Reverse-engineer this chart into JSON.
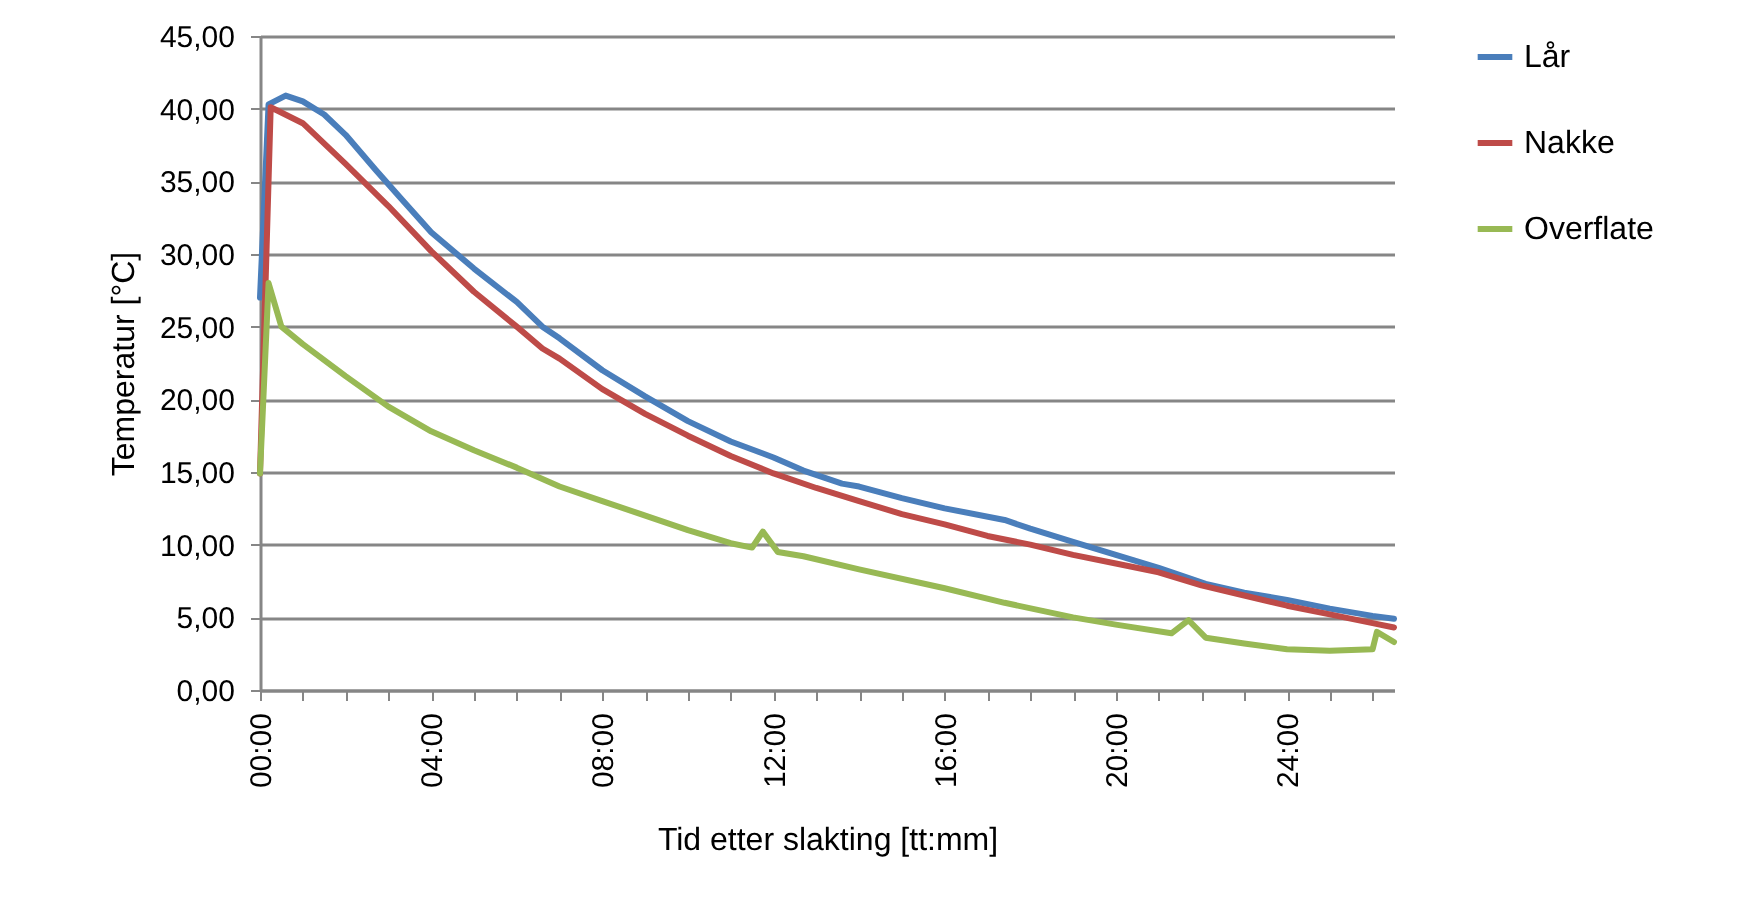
{
  "chart_data": {
    "type": "line",
    "xlabel": "Tid etter slakting [tt:mm]",
    "ylabel": "Temperatur [°C]",
    "xlim": [
      0,
      26.5
    ],
    "ylim": [
      0,
      45
    ],
    "xticks": [
      {
        "value": 0,
        "label": "00:00"
      },
      {
        "value": 1,
        "label": null
      },
      {
        "value": 2,
        "label": null
      },
      {
        "value": 3,
        "label": null
      },
      {
        "value": 4,
        "label": "04:00"
      },
      {
        "value": 5,
        "label": null
      },
      {
        "value": 6,
        "label": null
      },
      {
        "value": 7,
        "label": null
      },
      {
        "value": 8,
        "label": "08:00"
      },
      {
        "value": 9,
        "label": null
      },
      {
        "value": 10,
        "label": null
      },
      {
        "value": 11,
        "label": null
      },
      {
        "value": 12,
        "label": "12:00"
      },
      {
        "value": 13,
        "label": null
      },
      {
        "value": 14,
        "label": null
      },
      {
        "value": 15,
        "label": null
      },
      {
        "value": 16,
        "label": "16:00"
      },
      {
        "value": 17,
        "label": null
      },
      {
        "value": 18,
        "label": null
      },
      {
        "value": 19,
        "label": null
      },
      {
        "value": 20,
        "label": "20:00"
      },
      {
        "value": 21,
        "label": null
      },
      {
        "value": 22,
        "label": null
      },
      {
        "value": 23,
        "label": null
      },
      {
        "value": 24,
        "label": "24:00"
      },
      {
        "value": 25,
        "label": null
      },
      {
        "value": 26,
        "label": null
      }
    ],
    "yticks": [
      {
        "value": 0,
        "label": "0,00"
      },
      {
        "value": 5,
        "label": "5,00"
      },
      {
        "value": 10,
        "label": "10,00"
      },
      {
        "value": 15,
        "label": "15,00"
      },
      {
        "value": 20,
        "label": "20,00"
      },
      {
        "value": 25,
        "label": "25,00"
      },
      {
        "value": 30,
        "label": "30,00"
      },
      {
        "value": 35,
        "label": "35,00"
      },
      {
        "value": 40,
        "label": "40,00"
      },
      {
        "value": 45,
        "label": "45,00"
      }
    ],
    "grid": "y",
    "legend": "right",
    "marker": "none",
    "line_style": "solid",
    "series": [
      {
        "name": "Lår",
        "color": "#4a7ebb",
        "x": [
          0,
          0.2,
          0.6,
          1,
          1.5,
          2,
          2.7,
          3.3,
          4,
          5,
          6,
          6.6,
          7,
          8,
          9,
          10,
          11,
          12,
          12.7,
          13.6,
          14,
          15,
          16,
          17.4,
          18,
          19,
          20,
          21,
          22.1,
          23,
          24,
          25,
          26,
          26.5
        ],
        "values": [
          27,
          40.3,
          40.9,
          40.5,
          39.6,
          38.2,
          35.8,
          33.8,
          31.5,
          29,
          26.7,
          25,
          24.2,
          22,
          20.2,
          18.5,
          17.1,
          16,
          15.1,
          14.2,
          14,
          13.2,
          12.5,
          11.7,
          11.1,
          10.2,
          9.3,
          8.4,
          7.3,
          6.7,
          6.2,
          5.6,
          5.1,
          4.9
        ]
      },
      {
        "name": "Nakke",
        "color": "#be4b48",
        "x": [
          0,
          0.15,
          0.25,
          1,
          2,
          3,
          4,
          5,
          6,
          6.6,
          7,
          8,
          9,
          10,
          11,
          12,
          13,
          14,
          15,
          16,
          17,
          18,
          19,
          20,
          21,
          22,
          23,
          24,
          25,
          26,
          26.5
        ],
        "values": [
          14.9,
          30,
          40.1,
          39,
          36.2,
          33.3,
          30.2,
          27.4,
          25,
          23.5,
          22.8,
          20.7,
          19,
          17.5,
          16.1,
          14.9,
          13.9,
          13,
          12.1,
          11.4,
          10.6,
          10,
          9.3,
          8.7,
          8.1,
          7.2,
          6.5,
          5.8,
          5.2,
          4.6,
          4.3
        ]
      },
      {
        "name": "Overflate",
        "color": "#98b954",
        "x": [
          0,
          0.2,
          0.5,
          1,
          2,
          3,
          4,
          5,
          6,
          7,
          8,
          8.9,
          10,
          11,
          11.5,
          11.75,
          12.1,
          12.7,
          14,
          16,
          17.4,
          19,
          20,
          21.3,
          21.7,
          22.1,
          23,
          24,
          25,
          26,
          26.1,
          26.5
        ],
        "values": [
          14.9,
          28,
          25,
          23.8,
          21.6,
          19.5,
          17.8,
          16.5,
          15.3,
          14,
          13,
          12.1,
          11,
          10.1,
          9.8,
          10.9,
          9.5,
          9.2,
          8.3,
          7,
          6,
          5,
          4.5,
          3.9,
          4.8,
          3.6,
          3.2,
          2.8,
          2.7,
          2.8,
          4,
          3.3
        ]
      }
    ]
  }
}
